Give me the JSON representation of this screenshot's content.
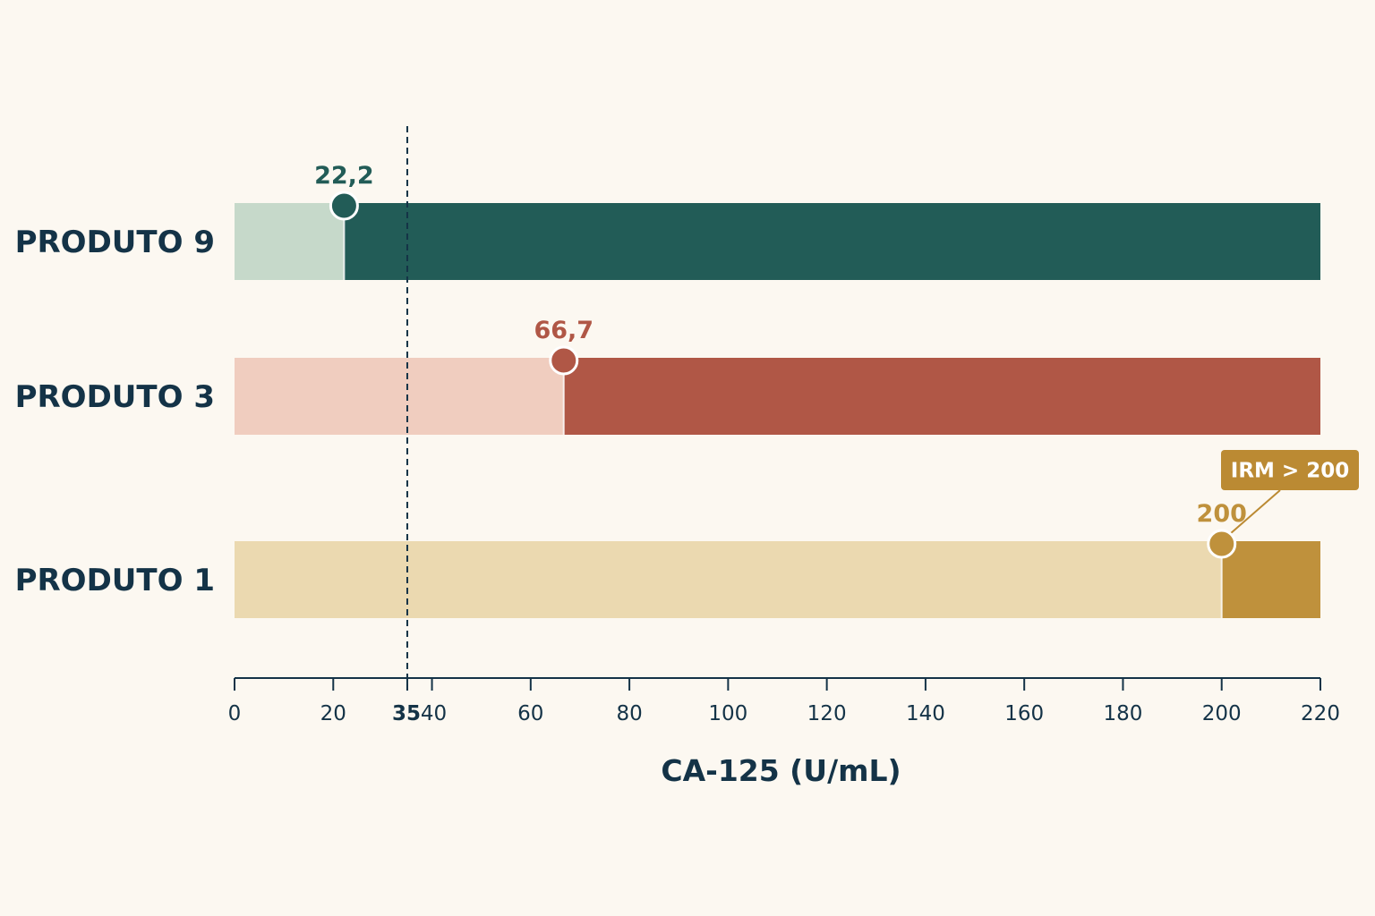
{
  "chart_data": {
    "type": "bar",
    "orientation": "horizontal",
    "xlabel": "CA-125 (U/mL)",
    "xlim": [
      0,
      220
    ],
    "xticks": [
      {
        "value": 0,
        "label": "0"
      },
      {
        "value": 20,
        "label": "20"
      },
      {
        "value": 35,
        "label": "35",
        "highlight": true
      },
      {
        "value": 40,
        "label": "40"
      },
      {
        "value": 60,
        "label": "60"
      },
      {
        "value": 80,
        "label": "80"
      },
      {
        "value": 100,
        "label": "100"
      },
      {
        "value": 120,
        "label": "120"
      },
      {
        "value": 140,
        "label": "140"
      },
      {
        "value": 160,
        "label": "160"
      },
      {
        "value": 180,
        "label": "180"
      },
      {
        "value": 200,
        "label": "200"
      },
      {
        "value": 220,
        "label": "220"
      }
    ],
    "reference_line": {
      "value": 35,
      "style": "dashed",
      "color": "#143347"
    },
    "categories": [
      "PRODUTO 9",
      "PRODUTO 3",
      "PRODUTO 1"
    ],
    "values": [
      22.2,
      66.7,
      200
    ],
    "value_labels": [
      "22,2",
      "66,7",
      "200"
    ],
    "colors": [
      {
        "dark": "#225c57",
        "light": "#c6d9ca"
      },
      {
        "dark": "#b05746",
        "light": "#f0cdbf"
      },
      {
        "dark": "#bf913c",
        "light": "#ebd9b0"
      }
    ],
    "annotation": {
      "category": "PRODUTO 1",
      "text": "IRM > 200",
      "color": "#bb8a33"
    }
  }
}
